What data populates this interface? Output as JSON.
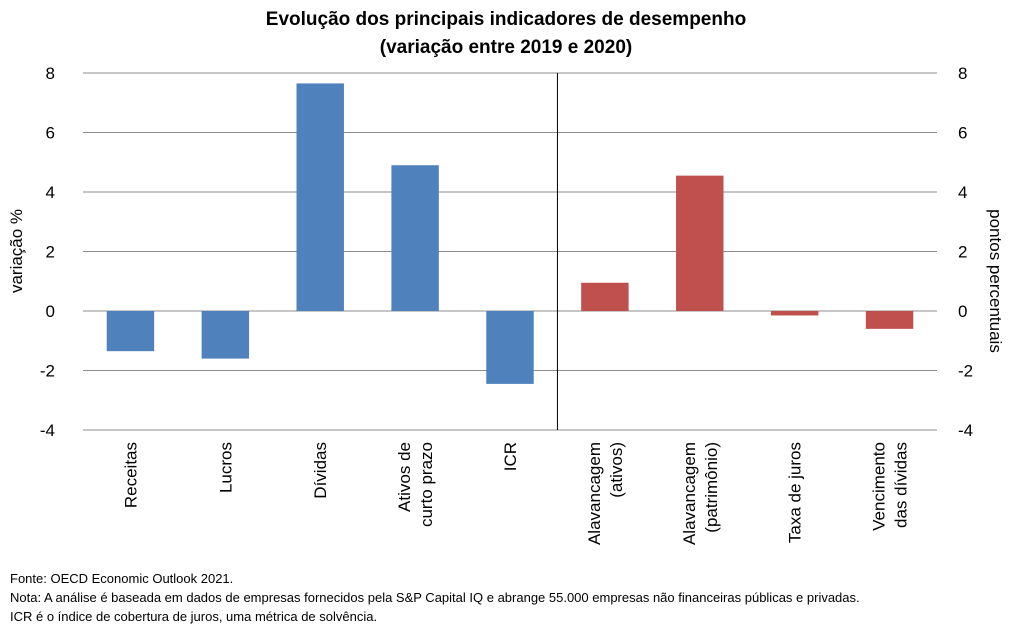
{
  "chart_data": {
    "type": "bar",
    "title": [
      "Evolução dos principais indicadores de desempenho",
      "(variação entre 2019 e 2020)"
    ],
    "ylabel_left": "variação %",
    "ylabel_right": "pontos percentuais",
    "ylim": [
      -4,
      8
    ],
    "yticks": [
      "-4",
      "-2",
      "0",
      "2",
      "4",
      "6",
      "8"
    ],
    "grid": true,
    "categories": [
      [
        "Receitas"
      ],
      [
        "Lucros"
      ],
      [
        "Dívidas"
      ],
      [
        "Ativos de",
        "curto prazo"
      ],
      [
        "ICR"
      ],
      [
        "Alavancagem",
        "(ativos)"
      ],
      [
        "Alavancagem",
        "(patrimônio)"
      ],
      [
        "Taxa de juros"
      ],
      [
        "Vencimento",
        "das dívidas"
      ]
    ],
    "values": [
      -1.35,
      -1.6,
      7.65,
      4.9,
      -2.45,
      0.95,
      4.55,
      -0.15,
      -0.6
    ],
    "axis": [
      "left",
      "left",
      "left",
      "left",
      "left",
      "right",
      "right",
      "right",
      "right"
    ],
    "colors": {
      "left": "#4f81bd",
      "right": "#c0504d"
    }
  },
  "notes": {
    "source": "Fonte: OECD Economic Outlook 2021.",
    "note": "Nota: A análise é baseada em dados de empresas fornecidos pela S&P Capital IQ e abrange 55.000 empresas não financeiras públicas e privadas.",
    "icr": "ICR é o índice de cobertura de juros, uma métrica de solvência."
  }
}
